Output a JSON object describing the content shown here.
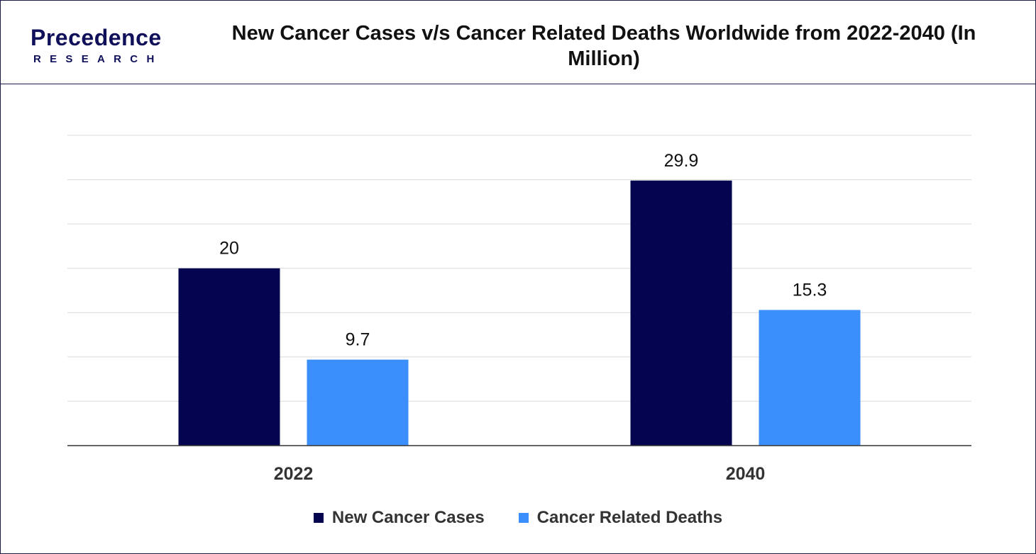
{
  "brand": {
    "name": "Precedence",
    "sub": "RESEARCH",
    "color": "#10105a",
    "accent": "#2f7ff0"
  },
  "chart_data": {
    "type": "bar",
    "title": "New Cancer Cases v/s Cancer Related Deaths Worldwide from 2022-2040 (In Million)",
    "categories": [
      "2022",
      "2040"
    ],
    "series": [
      {
        "name": "New Cancer Cases",
        "values": [
          20,
          29.9
        ],
        "color": "#04044f"
      },
      {
        "name": "Cancer Related Deaths",
        "values": [
          9.7,
          15.3
        ],
        "color": "#3a8ffc"
      }
    ],
    "ylim": [
      0,
      35
    ],
    "grid": true,
    "y_tick_labels_shown": false,
    "legend": "bottom-center"
  }
}
